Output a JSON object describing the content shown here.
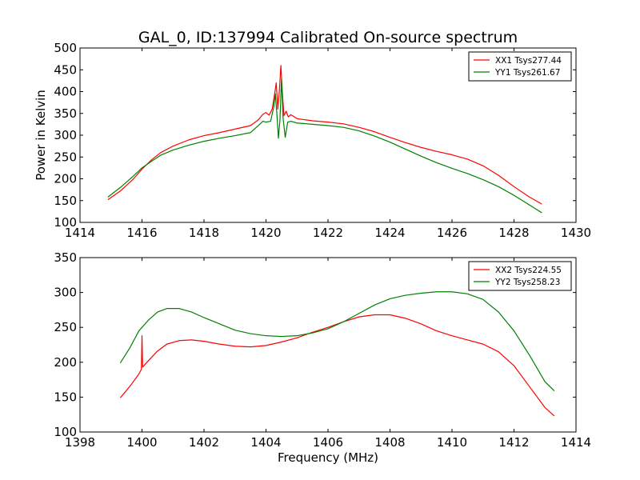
{
  "figure": {
    "title": "GAL_0, ID:137994 Calibrated On-source spectrum",
    "xlabel": "Frequency (MHz)",
    "ylabel_top": "Power in Kelvin"
  },
  "chart_data": [
    {
      "type": "line",
      "title": "GAL_0, ID:137994 Calibrated On-source spectrum",
      "xlabel": "",
      "ylabel": "Power in Kelvin",
      "xlim": [
        1414,
        1430
      ],
      "ylim": [
        100,
        500
      ],
      "xticks": [
        1414,
        1416,
        1418,
        1420,
        1422,
        1424,
        1426,
        1428,
        1430
      ],
      "yticks": [
        100,
        150,
        200,
        250,
        300,
        350,
        400,
        450,
        500
      ],
      "grid": false,
      "legend": "top-right",
      "series": [
        {
          "name": "XX1 Tsys277.44",
          "color": "#ff0000",
          "points": [
            [
              1414.9,
              152
            ],
            [
              1415.3,
              172
            ],
            [
              1415.7,
              198
            ],
            [
              1416.0,
              222
            ],
            [
              1416.3,
              243
            ],
            [
              1416.6,
              260
            ],
            [
              1417.0,
              275
            ],
            [
              1417.5,
              289
            ],
            [
              1418.0,
              299
            ],
            [
              1418.5,
              306
            ],
            [
              1419.0,
              314
            ],
            [
              1419.5,
              322
            ],
            [
              1419.75,
              335
            ],
            [
              1419.9,
              348
            ],
            [
              1420.0,
              352
            ],
            [
              1420.1,
              346
            ],
            [
              1420.2,
              360
            ],
            [
              1420.28,
              395
            ],
            [
              1420.33,
              420
            ],
            [
              1420.38,
              360
            ],
            [
              1420.43,
              400
            ],
            [
              1420.48,
              460
            ],
            [
              1420.53,
              395
            ],
            [
              1420.58,
              345
            ],
            [
              1420.65,
              355
            ],
            [
              1420.72,
              342
            ],
            [
              1420.8,
              347
            ],
            [
              1421.0,
              338
            ],
            [
              1421.5,
              333
            ],
            [
              1422.0,
              330
            ],
            [
              1422.5,
              326
            ],
            [
              1423.0,
              318
            ],
            [
              1423.5,
              308
            ],
            [
              1424.0,
              295
            ],
            [
              1424.5,
              283
            ],
            [
              1425.0,
              272
            ],
            [
              1425.5,
              263
            ],
            [
              1426.0,
              255
            ],
            [
              1426.5,
              245
            ],
            [
              1427.0,
              230
            ],
            [
              1427.5,
              208
            ],
            [
              1428.0,
              182
            ],
            [
              1428.5,
              158
            ],
            [
              1428.9,
              142
            ]
          ]
        },
        {
          "name": "YY1 Tsys261.67",
          "color": "#008000",
          "points": [
            [
              1414.9,
              158
            ],
            [
              1415.3,
              180
            ],
            [
              1415.7,
              205
            ],
            [
              1416.0,
              225
            ],
            [
              1416.3,
              240
            ],
            [
              1416.6,
              254
            ],
            [
              1417.0,
              266
            ],
            [
              1417.5,
              277
            ],
            [
              1418.0,
              286
            ],
            [
              1418.5,
              293
            ],
            [
              1419.0,
              299
            ],
            [
              1419.5,
              306
            ],
            [
              1419.75,
              322
            ],
            [
              1419.9,
              332
            ],
            [
              1420.0,
              330
            ],
            [
              1420.15,
              332
            ],
            [
              1420.25,
              365
            ],
            [
              1420.3,
              395
            ],
            [
              1420.35,
              350
            ],
            [
              1420.4,
              293
            ],
            [
              1420.45,
              335
            ],
            [
              1420.5,
              430
            ],
            [
              1420.55,
              340
            ],
            [
              1420.62,
              295
            ],
            [
              1420.7,
              330
            ],
            [
              1420.8,
              332
            ],
            [
              1421.0,
              328
            ],
            [
              1421.5,
              325
            ],
            [
              1422.0,
              322
            ],
            [
              1422.5,
              318
            ],
            [
              1423.0,
              310
            ],
            [
              1423.5,
              298
            ],
            [
              1424.0,
              284
            ],
            [
              1424.5,
              268
            ],
            [
              1425.0,
              252
            ],
            [
              1425.5,
              237
            ],
            [
              1426.0,
              224
            ],
            [
              1426.5,
              212
            ],
            [
              1427.0,
              198
            ],
            [
              1427.5,
              182
            ],
            [
              1428.0,
              162
            ],
            [
              1428.5,
              140
            ],
            [
              1428.9,
              122
            ]
          ]
        }
      ]
    },
    {
      "type": "line",
      "title": "",
      "xlabel": "Frequency (MHz)",
      "ylabel": "",
      "xlim": [
        1398,
        1414
      ],
      "ylim": [
        100,
        350
      ],
      "xticks": [
        1398,
        1400,
        1402,
        1404,
        1406,
        1408,
        1410,
        1412,
        1414
      ],
      "yticks": [
        100,
        150,
        200,
        250,
        300,
        350
      ],
      "grid": false,
      "legend": "top-right",
      "series": [
        {
          "name": "XX2 Tsys224.55",
          "color": "#ff0000",
          "points": [
            [
              1399.3,
              149
            ],
            [
              1399.6,
              165
            ],
            [
              1399.9,
              183
            ],
            [
              1399.98,
              190
            ],
            [
              1400.0,
              238
            ],
            [
              1400.02,
              193
            ],
            [
              1400.2,
              202
            ],
            [
              1400.5,
              216
            ],
            [
              1400.8,
              226
            ],
            [
              1401.2,
              231
            ],
            [
              1401.6,
              232
            ],
            [
              1402.0,
              230
            ],
            [
              1402.5,
              226
            ],
            [
              1403.0,
              223
            ],
            [
              1403.5,
              222
            ],
            [
              1404.0,
              224
            ],
            [
              1404.5,
              229
            ],
            [
              1405.0,
              235
            ],
            [
              1405.5,
              243
            ],
            [
              1406.0,
              250
            ],
            [
              1406.5,
              258
            ],
            [
              1407.0,
              265
            ],
            [
              1407.5,
              268
            ],
            [
              1408.0,
              268
            ],
            [
              1408.5,
              263
            ],
            [
              1409.0,
              255
            ],
            [
              1409.5,
              245
            ],
            [
              1410.0,
              238
            ],
            [
              1410.5,
              232
            ],
            [
              1411.0,
              226
            ],
            [
              1411.5,
              215
            ],
            [
              1412.0,
              195
            ],
            [
              1412.5,
              165
            ],
            [
              1413.0,
              135
            ],
            [
              1413.3,
              123
            ]
          ]
        },
        {
          "name": "YY2 Tsys258.23",
          "color": "#008000",
          "points": [
            [
              1399.3,
              199
            ],
            [
              1399.6,
              220
            ],
            [
              1399.9,
              245
            ],
            [
              1400.2,
              260
            ],
            [
              1400.5,
              272
            ],
            [
              1400.8,
              277
            ],
            [
              1401.2,
              277
            ],
            [
              1401.6,
              272
            ],
            [
              1402.0,
              264
            ],
            [
              1402.5,
              255
            ],
            [
              1403.0,
              246
            ],
            [
              1403.5,
              241
            ],
            [
              1404.0,
              238
            ],
            [
              1404.5,
              237
            ],
            [
              1405.0,
              238
            ],
            [
              1405.5,
              242
            ],
            [
              1406.0,
              248
            ],
            [
              1406.5,
              258
            ],
            [
              1407.0,
              270
            ],
            [
              1407.5,
              282
            ],
            [
              1408.0,
              291
            ],
            [
              1408.5,
              296
            ],
            [
              1409.0,
              299
            ],
            [
              1409.5,
              301
            ],
            [
              1410.0,
              301
            ],
            [
              1410.5,
              298
            ],
            [
              1411.0,
              290
            ],
            [
              1411.5,
              272
            ],
            [
              1412.0,
              245
            ],
            [
              1412.5,
              210
            ],
            [
              1413.0,
              172
            ],
            [
              1413.3,
              159
            ]
          ]
        }
      ]
    }
  ]
}
